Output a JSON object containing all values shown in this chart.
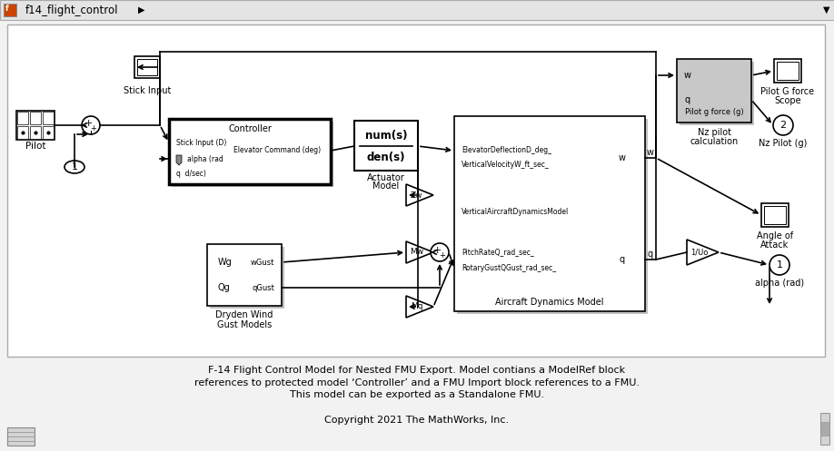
{
  "fig_w": 9.18,
  "fig_h": 4.97,
  "dpi": 100,
  "bg": "#f2f2f2",
  "white": "#ffffff",
  "black": "#000000",
  "gray_block": "#c8c8c8",
  "dark_block": "#1a1a1a",
  "shadow": "#c0c0c0",
  "title_bg": "#e4e4e4",
  "title_text": "f14_flight_control",
  "desc1": "F-14 Flight Control Model for Nested FMU Export. Model contians a ModelRef block",
  "desc2": "references to protected model ‘Controller’ and a FMU Import block references to a FMU.",
  "desc3": "This model can be exported as a Standalone FMU.",
  "copyright": "Copyright 2021 The MathWorks, Inc."
}
